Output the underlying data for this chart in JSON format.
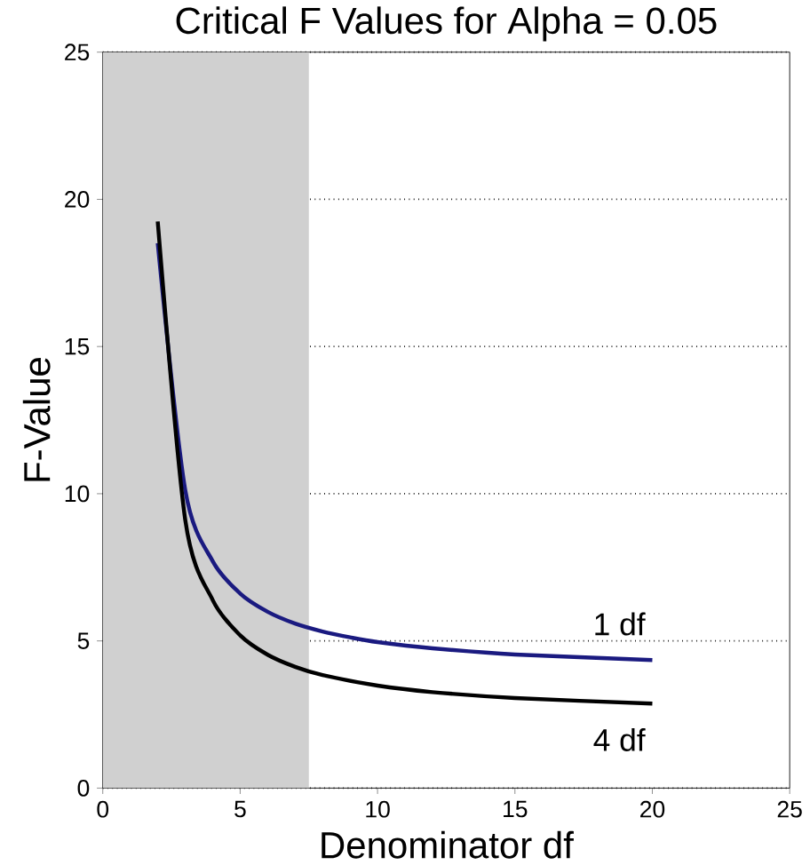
{
  "chart_data": {
    "type": "line",
    "title": "Critical F Values for Alpha = 0.05",
    "xlabel": "Denominator df",
    "ylabel": "F-Value",
    "series": [
      {
        "name": "1 df",
        "color": "#1a1a80",
        "x": [
          2,
          3,
          4,
          5,
          6,
          7,
          8,
          9,
          10,
          12,
          15,
          20
        ],
        "values": [
          18.51,
          10.13,
          7.71,
          6.61,
          5.99,
          5.59,
          5.32,
          5.12,
          4.96,
          4.75,
          4.54,
          4.35
        ]
      },
      {
        "name": "4 df",
        "color": "#000000",
        "x": [
          2,
          3,
          4,
          5,
          6,
          7,
          8,
          10,
          12,
          15,
          20
        ],
        "values": [
          19.25,
          9.12,
          6.39,
          5.19,
          4.53,
          4.12,
          3.84,
          3.48,
          3.26,
          3.06,
          2.87
        ]
      }
    ],
    "xlim": [
      0,
      25
    ],
    "ylim": [
      0,
      25
    ],
    "xticks": [
      0,
      5,
      10,
      15,
      20,
      25
    ],
    "yticks": [
      0,
      5,
      10,
      15,
      20,
      25
    ],
    "grid": "y",
    "marker": "none",
    "line_style": "solid",
    "bands": [
      {
        "axis": "x",
        "from": 0,
        "to": 7.5,
        "color": "#d0d0d0"
      }
    ]
  }
}
